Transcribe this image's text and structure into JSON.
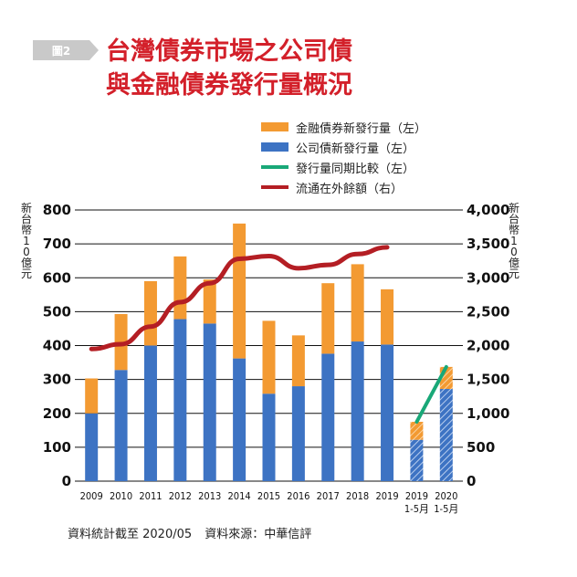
{
  "figure_badge": "圖2",
  "title_lines": [
    "台灣債券市場之公司債",
    "與金融債券發行量概況"
  ],
  "legend": [
    {
      "label": "金融債券新發行量（左）",
      "color": "#f39a32",
      "kind": "bar"
    },
    {
      "label": "公司債新發行量（左）",
      "color": "#3d73c3",
      "kind": "bar"
    },
    {
      "label": "發行量同期比較（左）",
      "color": "#19a878",
      "kind": "line"
    },
    {
      "label": "流通在外餘額（右）",
      "color": "#b41e24",
      "kind": "line"
    }
  ],
  "left_axis_label": "新台幣10億元",
  "right_axis_label": "新台幣10億元",
  "footnote": {
    "stat_date": "資料統計截至 2020/05",
    "source": "資料來源：中華信評"
  },
  "chart_data": {
    "type": "bar",
    "stacked": true,
    "categories": [
      "2009",
      "2010",
      "2011",
      "2012",
      "2013",
      "2014",
      "2015",
      "2016",
      "2017",
      "2018",
      "2019",
      "2019\n1-5月",
      "2020\n1-5月"
    ],
    "category_lines": [
      [
        "2009"
      ],
      [
        "2010"
      ],
      [
        "2011"
      ],
      [
        "2012"
      ],
      [
        "2013"
      ],
      [
        "2014"
      ],
      [
        "2015"
      ],
      [
        "2016"
      ],
      [
        "2017"
      ],
      [
        "2018"
      ],
      [
        "2019"
      ],
      [
        "2019",
        "1-5月"
      ],
      [
        "2020",
        "1-5月"
      ]
    ],
    "hatched_categories": [
      11,
      12
    ],
    "series": [
      {
        "name": "公司債新發行量（左）",
        "axis": "left",
        "color": "#3d73c3",
        "values": [
          200,
          328,
          400,
          478,
          465,
          362,
          258,
          280,
          376,
          412,
          403,
          122,
          272
        ]
      },
      {
        "name": "金融債券新發行量（左）",
        "axis": "left",
        "color": "#f39a32",
        "values": [
          103,
          165,
          190,
          185,
          130,
          398,
          215,
          150,
          208,
          228,
          163,
          53,
          65
        ]
      },
      {
        "name": "發行量同期比較（左）",
        "axis": "left",
        "type": "line",
        "color": "#19a878",
        "points": [
          [
            11,
            175
          ],
          [
            12,
            337
          ]
        ]
      },
      {
        "name": "流通在外餘額（右）",
        "axis": "right",
        "type": "line",
        "color": "#b41e24",
        "points": [
          [
            0,
            1950
          ],
          [
            1,
            2020
          ],
          [
            2,
            2280
          ],
          [
            3,
            2640
          ],
          [
            4,
            2920
          ],
          [
            5,
            3280
          ],
          [
            6,
            3320
          ],
          [
            7,
            3140
          ],
          [
            8,
            3190
          ],
          [
            9,
            3350
          ],
          [
            10,
            3450
          ]
        ]
      }
    ],
    "left_axis": {
      "min": 0,
      "max": 800,
      "ticks": [
        0,
        100,
        200,
        300,
        400,
        500,
        600,
        700,
        800
      ]
    },
    "right_axis": {
      "min": 0,
      "max": 4000,
      "ticks": [
        0,
        500,
        1000,
        1500,
        2000,
        2500,
        3000,
        3500,
        4000
      ],
      "tick_labels": [
        "0",
        "500",
        "1,000",
        "1,500",
        "2,000",
        "2,500",
        "3,000",
        "3,500",
        "4,000"
      ]
    }
  }
}
